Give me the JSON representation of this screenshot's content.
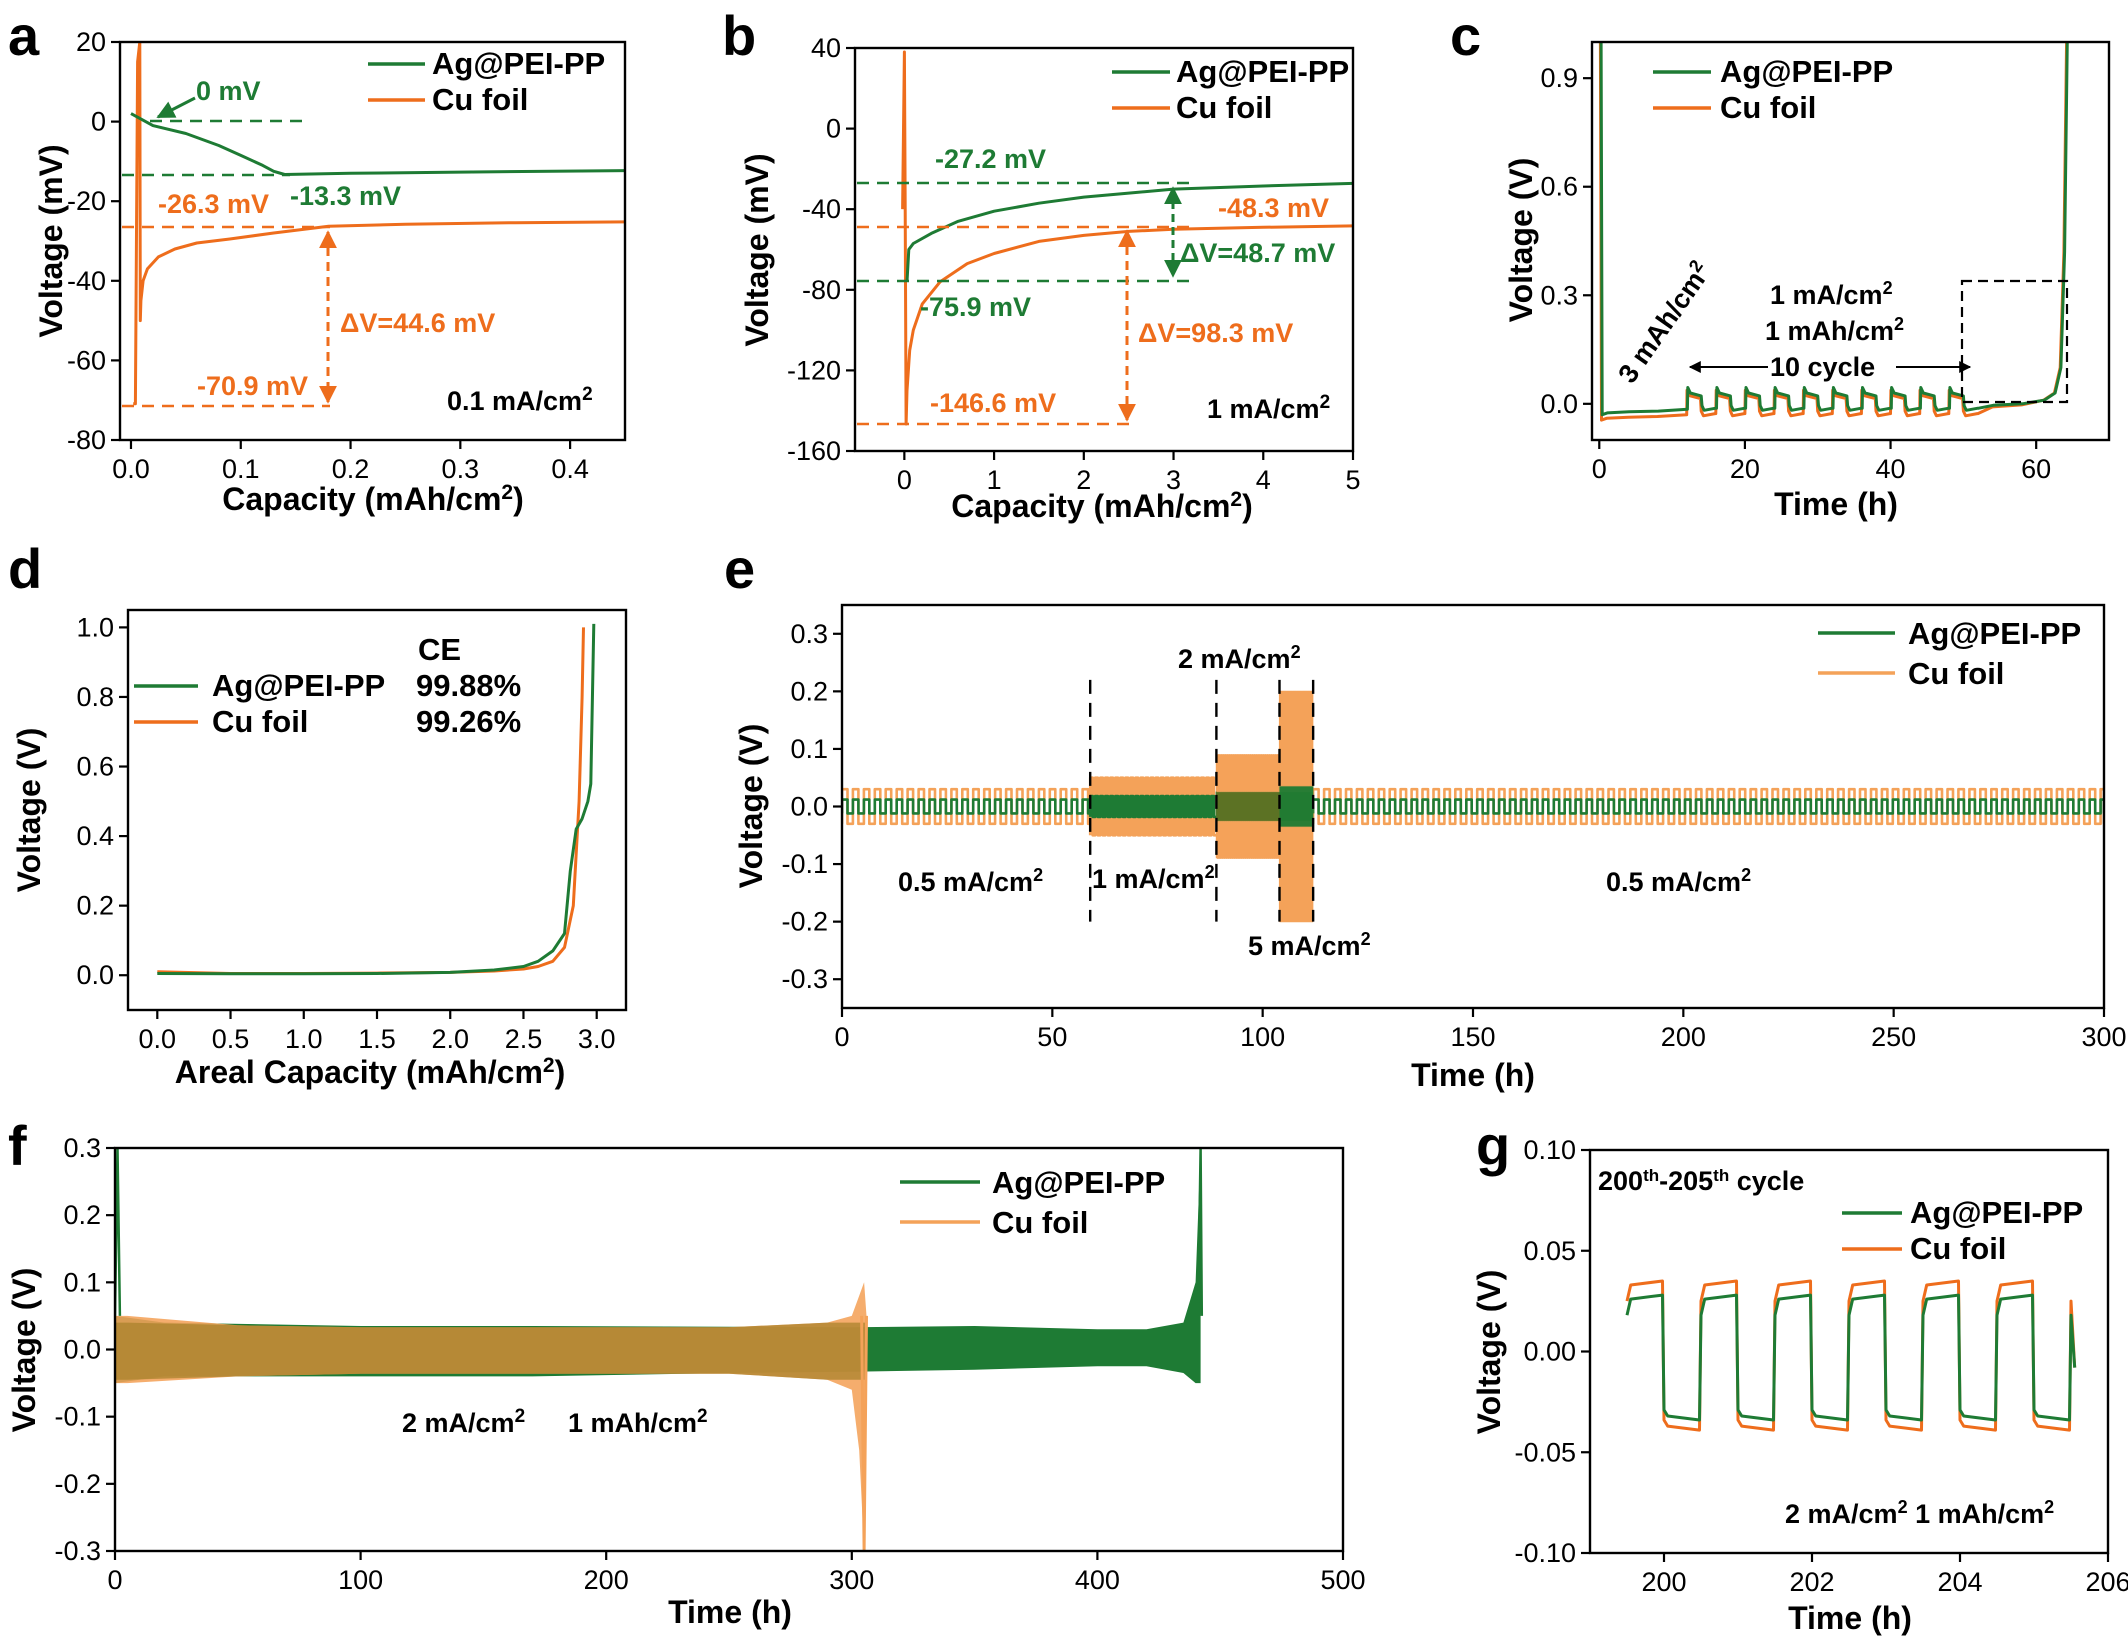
{
  "colors": {
    "green": "#1e7b34",
    "orange": "#ee6d1c",
    "light_orange": "#f4a259",
    "black": "#000000"
  },
  "chart_data": [
    {
      "panel": "a",
      "type": "line",
      "xlabel": "Capacity (mAh/cm²)",
      "ylabel": "Voltage (mV)",
      "xlim": [
        -0.01,
        0.45
      ],
      "ylim": [
        -80,
        20
      ],
      "xticks": [
        0.0,
        0.1,
        0.2,
        0.3,
        0.4
      ],
      "xtick_labels": [
        "0.0",
        "0.1",
        "0.2",
        "0.3",
        "0.4"
      ],
      "yticks": [
        -80,
        -60,
        -40,
        -20,
        0,
        20
      ],
      "ytick_labels": [
        "-80",
        "-60",
        "-40",
        "-20",
        "0",
        "20"
      ],
      "legend": {
        "position": "top-right",
        "labels": [
          "Ag@PEI-PP",
          "Cu foil"
        ]
      },
      "series": [
        {
          "name": "Ag@PEI-PP",
          "color": "green",
          "x": [
            0,
            0.02,
            0.05,
            0.08,
            0.1,
            0.12,
            0.13,
            0.14,
            0.2,
            0.3,
            0.45
          ],
          "y": [
            2,
            -1,
            -3,
            -6,
            -8.5,
            -11,
            -12.5,
            -13.3,
            -13,
            -12.7,
            -12.3
          ]
        },
        {
          "name": "Cu foil",
          "color": "orange",
          "x": [
            0.002,
            0.004,
            0.006,
            0.008,
            0.0085,
            0.009,
            0.011,
            0.015,
            0.025,
            0.04,
            0.06,
            0.09,
            0.13,
            0.18,
            0.25,
            0.35,
            0.45
          ],
          "y": [
            -70.9,
            -70.9,
            15,
            20,
            -50,
            -45,
            -40,
            -37,
            -34,
            -32,
            -30.5,
            -29.5,
            -28,
            -26.3,
            -25.8,
            -25.4,
            -25.2
          ]
        }
      ],
      "annotations": [
        "0 mV",
        "-13.3 mV",
        "-26.3 mV",
        "ΔV=44.6 mV",
        "-70.9 mV",
        "0.1 mA/cm²"
      ]
    },
    {
      "panel": "b",
      "type": "line",
      "xlabel": "Capacity (mAh/cm²)",
      "ylabel": "Voltage (mV)",
      "xlim": [
        -0.55,
        5
      ],
      "ylim": [
        -160,
        40
      ],
      "xticks": [
        0,
        1,
        2,
        3,
        4,
        5
      ],
      "xtick_labels": [
        "0",
        "1",
        "2",
        "3",
        "4",
        "5"
      ],
      "yticks": [
        -160,
        -120,
        -80,
        -40,
        0,
        40
      ],
      "ytick_labels": [
        "-160",
        "-120",
        "-80",
        "-40",
        "0",
        "40"
      ],
      "legend": {
        "position": "top-right",
        "labels": [
          "Ag@PEI-PP",
          "Cu foil"
        ]
      },
      "series": [
        {
          "name": "Ag@PEI-PP",
          "color": "green",
          "x": [
            0.03,
            0.05,
            0.1,
            0.3,
            0.6,
            1,
            1.5,
            2,
            2.5,
            3,
            4,
            5
          ],
          "y": [
            -75.9,
            -60,
            -57,
            -52,
            -46,
            -41,
            -37,
            -34,
            -32,
            -30,
            -28.5,
            -27.2
          ]
        },
        {
          "name": "Cu foil",
          "color": "orange",
          "x": [
            -0.02,
            0.0,
            0.01,
            0.02,
            0.03,
            0.06,
            0.1,
            0.2,
            0.4,
            0.7,
            1,
            1.5,
            2,
            2.5,
            3,
            4,
            5
          ],
          "y": [
            -40,
            38,
            -40,
            -146.6,
            -130,
            -110,
            -100,
            -87,
            -76,
            -67,
            -62,
            -56,
            -53,
            -51,
            -50,
            -49,
            -48.3
          ]
        }
      ],
      "annotations": [
        "-27.2 mV",
        "-48.3 mV",
        "ΔV=48.7 mV",
        "-75.9 mV",
        "ΔV=98.3 mV",
        "-146.6 mV",
        "1 mA/cm²"
      ]
    },
    {
      "panel": "c",
      "type": "line",
      "xlabel": "Time (h)",
      "ylabel": "Voltage (V)",
      "xlim": [
        -1,
        70
      ],
      "ylim": [
        -0.1,
        1.0
      ],
      "xticks": [
        0,
        20,
        40,
        60
      ],
      "xtick_labels": [
        "0",
        "20",
        "40",
        "60"
      ],
      "yticks": [
        0.0,
        0.3,
        0.6,
        0.9
      ],
      "ytick_labels": [
        "0.0",
        "0.3",
        "0.6",
        "0.9"
      ],
      "legend": {
        "position": "top-left",
        "labels": [
          "Ag@PEI-PP",
          "Cu foil"
        ]
      },
      "annotations": [
        "3 mAh/cm²",
        "1 mA/cm²",
        "1 mAh/cm²",
        "10 cycle"
      ]
    },
    {
      "panel": "d",
      "type": "line",
      "xlabel": "Areal Capacity (mAh/cm²)",
      "ylabel": "Voltage (V)",
      "xlim": [
        -0.2,
        3.2
      ],
      "ylim": [
        -0.1,
        1.05
      ],
      "xticks": [
        0.0,
        0.5,
        1.0,
        1.5,
        2.0,
        2.5,
        3.0
      ],
      "xtick_labels": [
        "0.0",
        "0.5",
        "1.0",
        "1.5",
        "2.0",
        "2.5",
        "3.0"
      ],
      "yticks": [
        0.0,
        0.2,
        0.4,
        0.6,
        0.8,
        1.0
      ],
      "ytick_labels": [
        "0.0",
        "0.2",
        "0.4",
        "0.6",
        "0.8",
        "1.0"
      ],
      "legend": {
        "position": "top-left",
        "labels": [
          "Ag@PEI-PP",
          "Cu foil"
        ]
      },
      "ce_header": "CE",
      "ce_values": [
        "99.88%",
        "99.26%"
      ],
      "series": [
        {
          "name": "Ag@PEI-PP",
          "color": "green",
          "x": [
            0,
            0.5,
            1,
            1.5,
            2,
            2.3,
            2.5,
            2.6,
            2.7,
            2.78,
            2.82,
            2.86,
            2.9,
            2.94,
            2.96,
            2.98
          ],
          "y": [
            0.005,
            0.004,
            0.004,
            0.005,
            0.008,
            0.015,
            0.025,
            0.04,
            0.07,
            0.12,
            0.3,
            0.42,
            0.45,
            0.5,
            0.55,
            1.01
          ]
        },
        {
          "name": "Cu foil",
          "color": "orange",
          "x": [
            0,
            0.5,
            1,
            1.5,
            2,
            2.3,
            2.5,
            2.6,
            2.7,
            2.78,
            2.84,
            2.88,
            2.9,
            2.91
          ],
          "y": [
            0.01,
            0.005,
            0.005,
            0.006,
            0.008,
            0.012,
            0.018,
            0.025,
            0.04,
            0.08,
            0.2,
            0.5,
            0.8,
            1.0
          ]
        }
      ]
    },
    {
      "panel": "e",
      "type": "line",
      "xlabel": "Time (h)",
      "ylabel": "Voltage (V)",
      "xlim": [
        0,
        300
      ],
      "ylim": [
        -0.35,
        0.35
      ],
      "xticks": [
        0,
        50,
        100,
        150,
        200,
        250,
        300
      ],
      "xtick_labels": [
        "0",
        "50",
        "100",
        "150",
        "200",
        "250",
        "300"
      ],
      "yticks": [
        -0.3,
        -0.2,
        -0.1,
        0.0,
        0.1,
        0.2,
        0.3
      ],
      "ytick_labels": [
        "-0.3",
        "-0.2",
        "-0.1",
        "0.0",
        "0.1",
        "0.2",
        "0.3"
      ],
      "legend": {
        "position": "top-right",
        "labels": [
          "Ag@PEI-PP",
          "Cu foil"
        ]
      },
      "segments": [
        {
          "label": "0.5 mA/cm²",
          "x": [
            0,
            59
          ],
          "cu_amp": 0.03,
          "ag_amp": 0.012
        },
        {
          "label": "1 mA/cm²",
          "x": [
            59,
            89
          ],
          "cu_amp": 0.05,
          "ag_amp": 0.018
        },
        {
          "label": "2 mA/cm²",
          "x": [
            89,
            104
          ],
          "cu_amp": 0.09,
          "ag_amp": 0.025
        },
        {
          "label": "5 mA/cm²",
          "x": [
            104,
            112
          ],
          "cu_amp": 0.2,
          "ag_amp": 0.035
        },
        {
          "label": "0.5 mA/cm²",
          "x": [
            112,
            300
          ],
          "cu_amp": 0.03,
          "ag_amp": 0.012
        }
      ]
    },
    {
      "panel": "f",
      "type": "area",
      "xlabel": "Time (h)",
      "ylabel": "Voltage (V)",
      "xlim": [
        0,
        500
      ],
      "ylim": [
        -0.3,
        0.3
      ],
      "xticks": [
        0,
        100,
        200,
        300,
        400,
        500
      ],
      "xtick_labels": [
        "0",
        "100",
        "200",
        "300",
        "400",
        "500"
      ],
      "yticks": [
        -0.3,
        -0.2,
        -0.1,
        0.0,
        0.1,
        0.2,
        0.3
      ],
      "ytick_labels": [
        "-0.3",
        "-0.2",
        "-0.1",
        "0.0",
        "0.1",
        "0.2",
        "0.3"
      ],
      "legend": {
        "position": "top-right",
        "labels": [
          "Ag@PEI-PP",
          "Cu foil"
        ]
      },
      "annotations": [
        "2 mA/cm²",
        "1 mAh/cm²"
      ],
      "series": [
        {
          "name": "Ag@PEI-PP",
          "color": "green",
          "x": [
            0,
            20,
            100,
            170,
            250,
            300,
            350,
            400,
            420,
            435,
            440,
            442
          ],
          "y_upper": [
            0.05,
            0.04,
            0.035,
            0.035,
            0.034,
            0.033,
            0.035,
            0.03,
            0.03,
            0.04,
            0.1,
            0.3
          ],
          "y_lower": [
            -0.05,
            -0.04,
            -0.04,
            -0.04,
            -0.035,
            -0.033,
            -0.03,
            -0.025,
            -0.025,
            -0.035,
            -0.05,
            -0.05
          ]
        },
        {
          "name": "Cu foil",
          "color": "light_orange",
          "x": [
            0,
            5,
            50,
            100,
            170,
            250,
            290,
            300,
            303,
            305,
            306
          ],
          "y_upper": [
            0.05,
            0.05,
            0.036,
            0.033,
            0.033,
            0.033,
            0.04,
            0.05,
            0.08,
            0.1,
            0.05
          ],
          "y_lower": [
            -0.05,
            -0.05,
            -0.04,
            -0.036,
            -0.036,
            -0.036,
            -0.045,
            -0.06,
            -0.15,
            -0.3,
            -0.05
          ]
        }
      ]
    },
    {
      "panel": "g",
      "type": "line",
      "xlabel": "Time (h)",
      "ylabel": "Voltage (V)",
      "title": "200th-205th cycle",
      "xlim": [
        199,
        206
      ],
      "ylim": [
        -0.1,
        0.1
      ],
      "xticks": [
        200,
        202,
        204,
        206
      ],
      "xtick_labels": [
        "200",
        "202",
        "204",
        "206"
      ],
      "yticks": [
        -0.1,
        -0.05,
        0.0,
        0.05,
        0.1
      ],
      "ytick_labels": [
        "-0.10",
        "-0.05",
        "0.00",
        "0.05",
        "0.10"
      ],
      "legend": {
        "position": "top-right",
        "labels": [
          "Ag@PEI-PP",
          "Cu foil"
        ]
      },
      "cycle_start": 199.5,
      "period": 1.0,
      "cycles": 6,
      "levels": {
        "Ag@PEI-PP": [
          0.026,
          -0.032
        ],
        "Cu foil": [
          0.033,
          -0.037
        ]
      },
      "annotations": [
        "2 mA/cm² 1 mAh/cm²"
      ]
    }
  ],
  "panel_labels": [
    "a",
    "b",
    "c",
    "d",
    "e",
    "f",
    "g"
  ],
  "legend_labels": {
    "ag": "Ag@PEI-PP",
    "cu": "Cu foil"
  },
  "labels": {
    "a": {
      "zero": "0 mV",
      "m13": "-13.3 mV",
      "m26": "-26.3 mV",
      "dv": "ΔV=44.6 mV",
      "m70": "-70.9 mV",
      "rate": "0.1 mA/cm",
      "sup": "2"
    },
    "b": {
      "m27": "-27.2 mV",
      "m48": "-48.3 mV",
      "dv1": "ΔV=48.7 mV",
      "m75": "-75.9 mV",
      "dv2": "ΔV=98.3 mV",
      "m146": "-146.6 mV",
      "rate": "1 mA/cm",
      "sup": "2"
    },
    "c": {
      "areal": "3 mAh/cm",
      "rate": "1 mA/cm",
      "cap": "1 mAh/cm",
      "cycles": "10 cycle",
      "sup": "2"
    },
    "e": {
      "r05a": "0.5 mA/cm",
      "r1": "1 mA/cm",
      "r2": "2 mA/cm",
      "r5": "5 mA/cm",
      "r05b": "0.5 mA/cm",
      "sup": "2"
    },
    "f": {
      "rate": "2 mA/cm",
      "cap": "1 mAh/cm",
      "sup": "2"
    },
    "g": {
      "title_a": "200",
      "title_b": "-205",
      "title_c": " cycle",
      "th": "th",
      "rate": "2 mA/cm",
      "cap": " 1 mAh/cm",
      "sup": "2"
    },
    "axis": {
      "cap_a": "Capacity (mAh/cm",
      "cap_b": "Capacity (mAh/cm",
      "areal": "Areal Capacity (mAh/cm",
      "close": ")",
      "sup": "2",
      "mV": "Voltage (mV)",
      "V": "Voltage (V)",
      "time": "Time (h)"
    }
  }
}
